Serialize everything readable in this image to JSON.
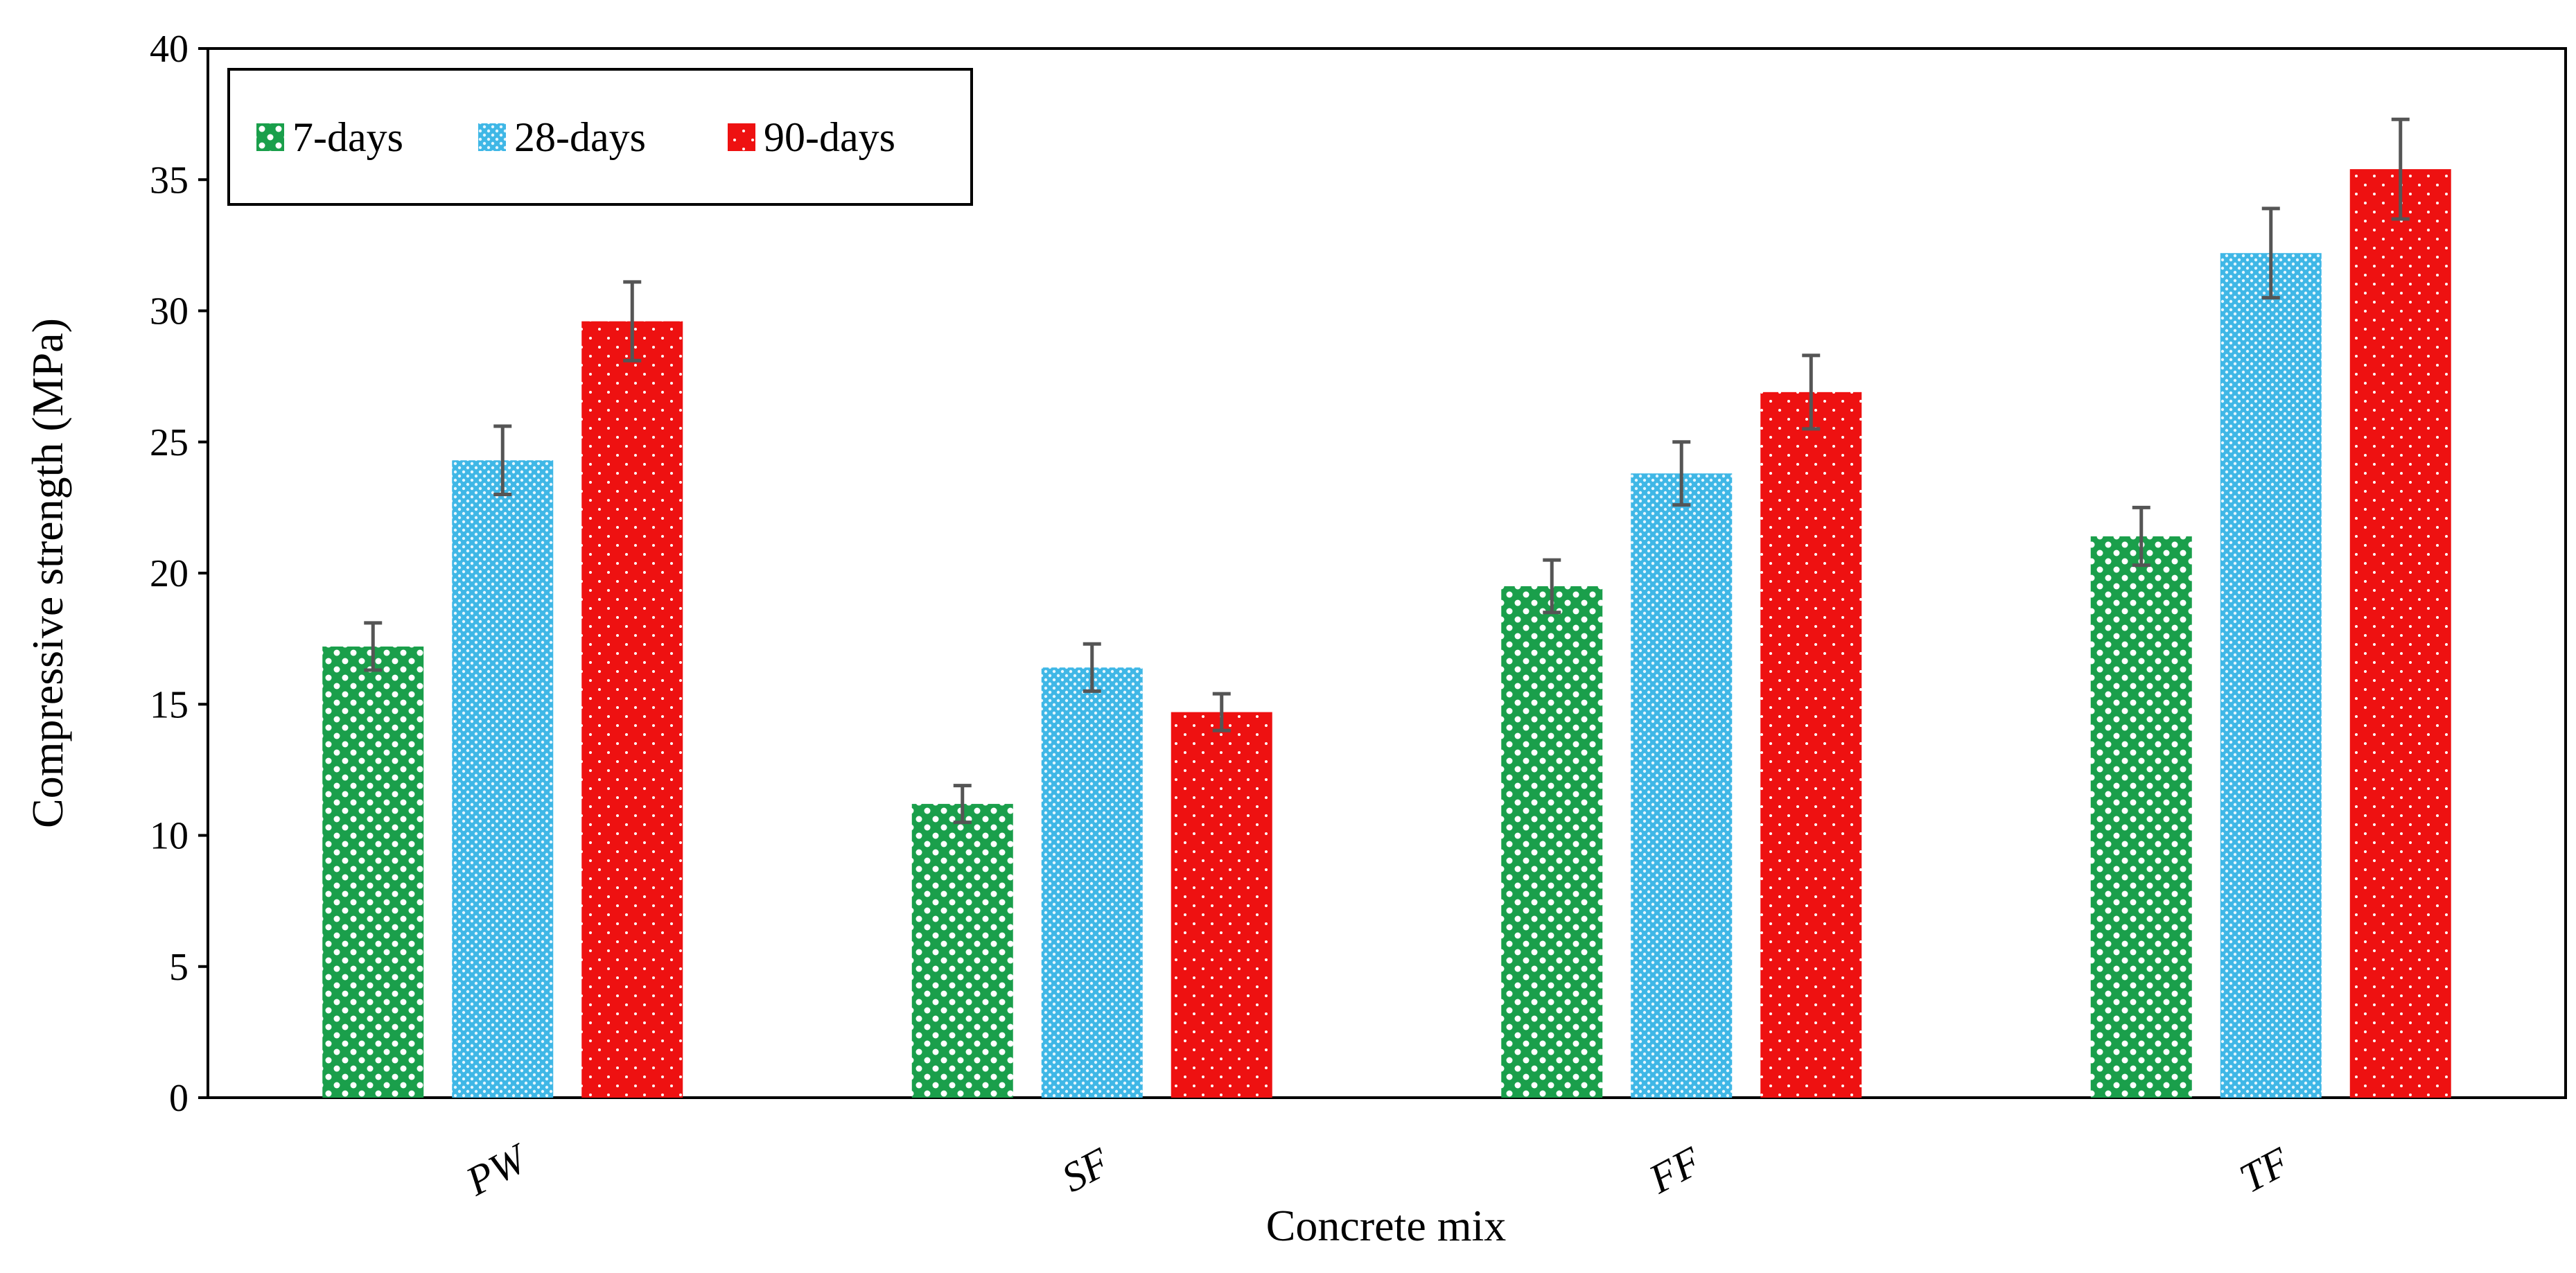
{
  "chart_data": {
    "type": "bar",
    "title": "",
    "xlabel": "Concrete mix",
    "ylabel": "Compressive strength (MPa)",
    "ylim": [
      0,
      40
    ],
    "yticks": [
      0,
      5,
      10,
      15,
      20,
      25,
      30,
      35,
      40
    ],
    "grid": false,
    "legend_position": "top-left",
    "categories": [
      "PW",
      "SF",
      "FF",
      "TF"
    ],
    "series": [
      {
        "name": "7-days",
        "values": [
          17.2,
          11.2,
          19.5,
          21.4
        ],
        "errors": [
          0.9,
          0.7,
          1.0,
          1.1
        ],
        "color": "#1a9f4b",
        "pattern": "checker"
      },
      {
        "name": "28-days",
        "values": [
          24.3,
          16.4,
          23.8,
          32.2
        ],
        "errors": [
          1.3,
          0.9,
          1.2,
          1.7
        ],
        "color": "#3fb7e6",
        "pattern": "mesh"
      },
      {
        "name": "90-days",
        "values": [
          29.6,
          14.7,
          26.9,
          35.4
        ],
        "errors": [
          1.5,
          0.7,
          1.4,
          1.9
        ],
        "color": "#ee1111",
        "pattern": "dots"
      }
    ],
    "error_bar_color": "#555555"
  }
}
